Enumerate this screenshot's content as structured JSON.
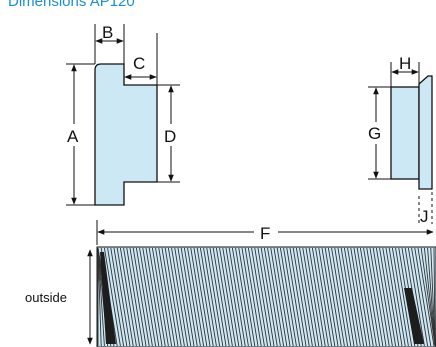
{
  "title": "Dimensions AP120",
  "labels": {
    "A": "A",
    "B": "B",
    "C": "C",
    "D": "D",
    "F": "F",
    "G": "G",
    "H": "H",
    "J": "J",
    "outside": "outside"
  },
  "colors": {
    "part_fill": "#cde8f5",
    "outline": "#111111",
    "hatch": "#333333"
  }
}
